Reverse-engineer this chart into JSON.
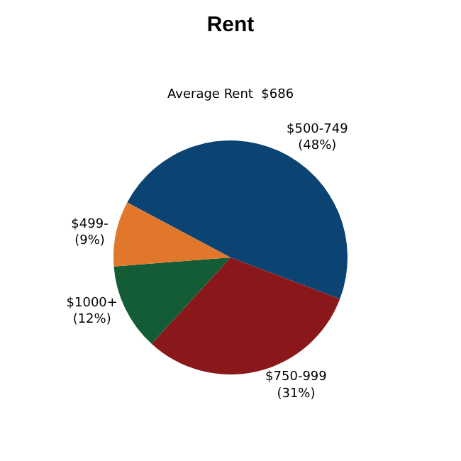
{
  "chart_data": {
    "type": "pie",
    "title": "Rent",
    "subtitle": "Average Rent  $686",
    "categories": [
      "$500-749",
      "$750-999",
      "$1000+",
      "$499-"
    ],
    "values": [
      48,
      31,
      12,
      9
    ],
    "value_labels": [
      "(48%)",
      "(31%)",
      "(12%)",
      "(9%)"
    ],
    "colors": [
      "#0b4473",
      "#8a1719",
      "#145c36",
      "#e0772b"
    ],
    "legend": false
  }
}
